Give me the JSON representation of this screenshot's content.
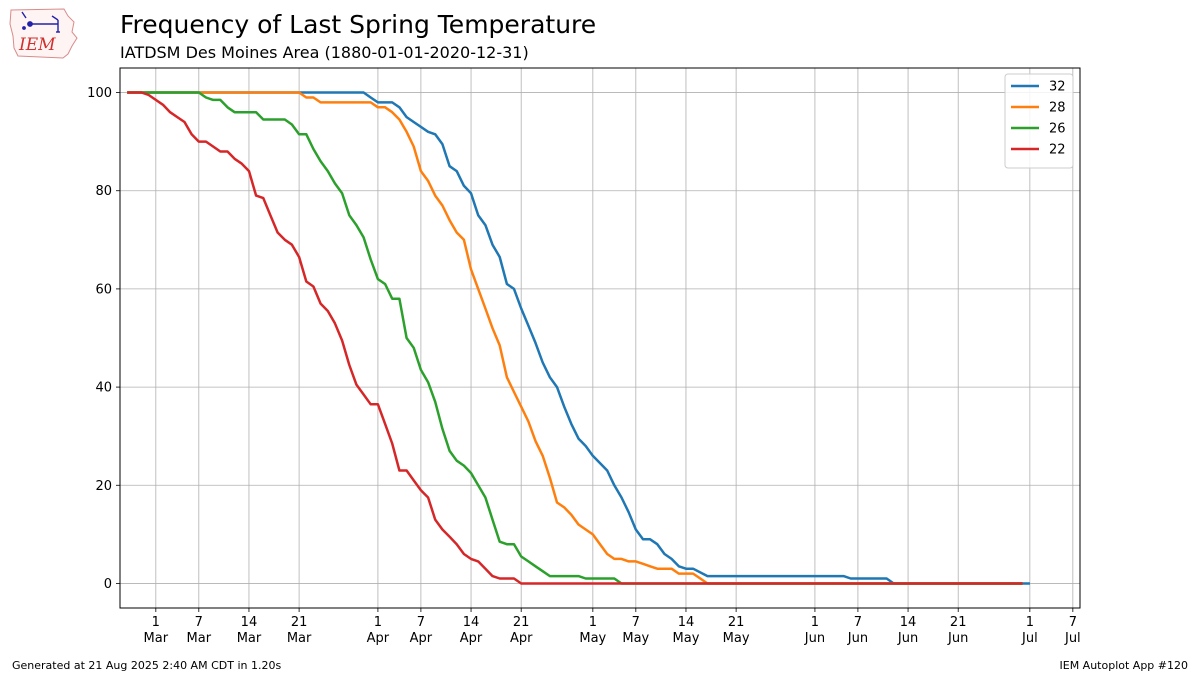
{
  "header": {
    "title": "Frequency of Last Spring Temperature",
    "subtitle": "IATDSM Des Moines Area (1880-01-01-2020-12-31)"
  },
  "logo": {
    "text": "IEM",
    "color": "#d0302e",
    "icon": "iowa-map-weather-station-icon"
  },
  "footer": {
    "left": "Generated at 21 Aug 2025 2:40 AM CDT in 1.20s",
    "right": "IEM Autoplot App #120"
  },
  "chart_data": {
    "type": "line",
    "title": "Frequency of Last Spring Temperature",
    "subtitle": "IATDSM Des Moines Area (1880-01-01-2020-12-31)",
    "xlabel": "",
    "ylabel": "",
    "xlim": [
      "2000-02-25",
      "2000-07-08"
    ],
    "ylim": [
      -5,
      105
    ],
    "grid": true,
    "legend_position": "top-right",
    "y_ticks": [
      0,
      20,
      40,
      60,
      80,
      100
    ],
    "x_ticks": [
      {
        "date": "2000-03-01",
        "day": "1",
        "month": "Mar"
      },
      {
        "date": "2000-03-07",
        "day": "7",
        "month": "Mar"
      },
      {
        "date": "2000-03-14",
        "day": "14",
        "month": "Mar"
      },
      {
        "date": "2000-03-21",
        "day": "21",
        "month": "Mar"
      },
      {
        "date": "2000-04-01",
        "day": "1",
        "month": "Apr"
      },
      {
        "date": "2000-04-07",
        "day": "7",
        "month": "Apr"
      },
      {
        "date": "2000-04-14",
        "day": "14",
        "month": "Apr"
      },
      {
        "date": "2000-04-21",
        "day": "21",
        "month": "Apr"
      },
      {
        "date": "2000-05-01",
        "day": "1",
        "month": "May"
      },
      {
        "date": "2000-05-07",
        "day": "7",
        "month": "May"
      },
      {
        "date": "2000-05-14",
        "day": "14",
        "month": "May"
      },
      {
        "date": "2000-05-21",
        "day": "21",
        "month": "May"
      },
      {
        "date": "2000-06-01",
        "day": "1",
        "month": "Jun"
      },
      {
        "date": "2000-06-07",
        "day": "7",
        "month": "Jun"
      },
      {
        "date": "2000-06-14",
        "day": "14",
        "month": "Jun"
      },
      {
        "date": "2000-06-21",
        "day": "21",
        "month": "Jun"
      },
      {
        "date": "2000-07-01",
        "day": "1",
        "month": "Jul"
      },
      {
        "date": "2000-07-07",
        "day": "7",
        "month": "Jul"
      }
    ],
    "series": [
      {
        "name": "32",
        "color": "#1f77b4",
        "points": [
          [
            "2000-02-26",
            100
          ],
          [
            "2000-03-30",
            100
          ],
          [
            "2000-03-31",
            99
          ],
          [
            "2000-04-01",
            98
          ],
          [
            "2000-04-03",
            98
          ],
          [
            "2000-04-04",
            97
          ],
          [
            "2000-04-05",
            95
          ],
          [
            "2000-04-06",
            94
          ],
          [
            "2000-04-07",
            93
          ],
          [
            "2000-04-08",
            92
          ],
          [
            "2000-04-09",
            91.5
          ],
          [
            "2000-04-10",
            89.5
          ],
          [
            "2000-04-11",
            85
          ],
          [
            "2000-04-12",
            84
          ],
          [
            "2000-04-13",
            81
          ],
          [
            "2000-04-14",
            79.5
          ],
          [
            "2000-04-15",
            75
          ],
          [
            "2000-04-16",
            73
          ],
          [
            "2000-04-17",
            69
          ],
          [
            "2000-04-18",
            66.5
          ],
          [
            "2000-04-19",
            61
          ],
          [
            "2000-04-20",
            60
          ],
          [
            "2000-04-21",
            56
          ],
          [
            "2000-04-22",
            52.5
          ],
          [
            "2000-04-23",
            49
          ],
          [
            "2000-04-24",
            45
          ],
          [
            "2000-04-25",
            42
          ],
          [
            "2000-04-26",
            40
          ],
          [
            "2000-04-27",
            36
          ],
          [
            "2000-04-28",
            32.5
          ],
          [
            "2000-04-29",
            29.5
          ],
          [
            "2000-04-30",
            28
          ],
          [
            "2000-05-01",
            26
          ],
          [
            "2000-05-03",
            23
          ],
          [
            "2000-05-04",
            20
          ],
          [
            "2000-05-05",
            17.5
          ],
          [
            "2000-05-06",
            14.5
          ],
          [
            "2000-05-07",
            11
          ],
          [
            "2000-05-08",
            9
          ],
          [
            "2000-05-09",
            9
          ],
          [
            "2000-05-10",
            8
          ],
          [
            "2000-05-11",
            6
          ],
          [
            "2000-05-12",
            5
          ],
          [
            "2000-05-13",
            3.5
          ],
          [
            "2000-05-14",
            3
          ],
          [
            "2000-05-15",
            3
          ],
          [
            "2000-05-17",
            1.5
          ],
          [
            "2000-06-05",
            1.5
          ],
          [
            "2000-06-06",
            1
          ],
          [
            "2000-06-11",
            1
          ],
          [
            "2000-06-12",
            0
          ],
          [
            "2000-07-01",
            0
          ]
        ]
      },
      {
        "name": "28",
        "color": "#ff7f0e",
        "points": [
          [
            "2000-02-26",
            100
          ],
          [
            "2000-03-21",
            100
          ],
          [
            "2000-03-22",
            99
          ],
          [
            "2000-03-23",
            99
          ],
          [
            "2000-03-24",
            98
          ],
          [
            "2000-03-31",
            98
          ],
          [
            "2000-04-01",
            97
          ],
          [
            "2000-04-02",
            97
          ],
          [
            "2000-04-03",
            96
          ],
          [
            "2000-04-04",
            94.5
          ],
          [
            "2000-04-05",
            92
          ],
          [
            "2000-04-06",
            89
          ],
          [
            "2000-04-07",
            84
          ],
          [
            "2000-04-08",
            82
          ],
          [
            "2000-04-09",
            79
          ],
          [
            "2000-04-10",
            77
          ],
          [
            "2000-04-11",
            74
          ],
          [
            "2000-04-12",
            71.5
          ],
          [
            "2000-04-13",
            70
          ],
          [
            "2000-04-14",
            64
          ],
          [
            "2000-04-15",
            60
          ],
          [
            "2000-04-16",
            56
          ],
          [
            "2000-04-17",
            52
          ],
          [
            "2000-04-18",
            48.5
          ],
          [
            "2000-04-19",
            42
          ],
          [
            "2000-04-20",
            39
          ],
          [
            "2000-04-21",
            36
          ],
          [
            "2000-04-22",
            33
          ],
          [
            "2000-04-23",
            29
          ],
          [
            "2000-04-24",
            26
          ],
          [
            "2000-04-25",
            21.5
          ],
          [
            "2000-04-26",
            16.5
          ],
          [
            "2000-04-27",
            15.5
          ],
          [
            "2000-04-28",
            14
          ],
          [
            "2000-04-29",
            12
          ],
          [
            "2000-04-30",
            11
          ],
          [
            "2000-05-01",
            10
          ],
          [
            "2000-05-02",
            8
          ],
          [
            "2000-05-03",
            6
          ],
          [
            "2000-05-04",
            5
          ],
          [
            "2000-05-05",
            5
          ],
          [
            "2000-05-06",
            4.5
          ],
          [
            "2000-05-07",
            4.5
          ],
          [
            "2000-05-08",
            4
          ],
          [
            "2000-05-09",
            3.5
          ],
          [
            "2000-05-10",
            3
          ],
          [
            "2000-05-12",
            3
          ],
          [
            "2000-05-13",
            2
          ],
          [
            "2000-05-15",
            2
          ],
          [
            "2000-05-16",
            1
          ],
          [
            "2000-05-17",
            0
          ],
          [
            "2000-06-30",
            0
          ]
        ]
      },
      {
        "name": "26",
        "color": "#2ca02c",
        "points": [
          [
            "2000-02-26",
            100
          ],
          [
            "2000-03-07",
            100
          ],
          [
            "2000-03-08",
            99
          ],
          [
            "2000-03-09",
            98.5
          ],
          [
            "2000-03-10",
            98.5
          ],
          [
            "2000-03-11",
            97
          ],
          [
            "2000-03-12",
            96
          ],
          [
            "2000-03-15",
            96
          ],
          [
            "2000-03-16",
            94.5
          ],
          [
            "2000-03-19",
            94.5
          ],
          [
            "2000-03-20",
            93.5
          ],
          [
            "2000-03-21",
            91.5
          ],
          [
            "2000-03-22",
            91.5
          ],
          [
            "2000-03-23",
            88.5
          ],
          [
            "2000-03-24",
            86
          ],
          [
            "2000-03-25",
            84
          ],
          [
            "2000-03-26",
            81.5
          ],
          [
            "2000-03-27",
            79.5
          ],
          [
            "2000-03-28",
            75
          ],
          [
            "2000-03-29",
            73
          ],
          [
            "2000-03-30",
            70.5
          ],
          [
            "2000-03-31",
            66
          ],
          [
            "2000-04-01",
            62
          ],
          [
            "2000-04-02",
            61
          ],
          [
            "2000-04-03",
            58
          ],
          [
            "2000-04-04",
            58
          ],
          [
            "2000-04-05",
            50
          ],
          [
            "2000-04-06",
            48
          ],
          [
            "2000-04-07",
            43.5
          ],
          [
            "2000-04-08",
            41
          ],
          [
            "2000-04-09",
            37
          ],
          [
            "2000-04-10",
            31.5
          ],
          [
            "2000-04-11",
            27
          ],
          [
            "2000-04-12",
            25
          ],
          [
            "2000-04-13",
            24
          ],
          [
            "2000-04-14",
            22.5
          ],
          [
            "2000-04-15",
            20
          ],
          [
            "2000-04-16",
            17.5
          ],
          [
            "2000-04-17",
            13
          ],
          [
            "2000-04-18",
            8.5
          ],
          [
            "2000-04-19",
            8
          ],
          [
            "2000-04-20",
            8
          ],
          [
            "2000-04-21",
            5.5
          ],
          [
            "2000-04-22",
            4.5
          ],
          [
            "2000-04-23",
            3.5
          ],
          [
            "2000-04-24",
            2.5
          ],
          [
            "2000-04-25",
            1.5
          ],
          [
            "2000-04-29",
            1.5
          ],
          [
            "2000-04-30",
            1
          ],
          [
            "2000-05-04",
            1
          ],
          [
            "2000-05-05",
            0
          ],
          [
            "2000-06-30",
            0
          ]
        ]
      },
      {
        "name": "22",
        "color": "#d62728",
        "points": [
          [
            "2000-02-26",
            100
          ],
          [
            "2000-02-28",
            100
          ],
          [
            "2000-02-29",
            99.5
          ],
          [
            "2000-03-01",
            98.5
          ],
          [
            "2000-03-02",
            97.5
          ],
          [
            "2000-03-03",
            96
          ],
          [
            "2000-03-04",
            95
          ],
          [
            "2000-03-05",
            94
          ],
          [
            "2000-03-06",
            91.5
          ],
          [
            "2000-03-07",
            90
          ],
          [
            "2000-03-08",
            90
          ],
          [
            "2000-03-09",
            89
          ],
          [
            "2000-03-10",
            88
          ],
          [
            "2000-03-11",
            88
          ],
          [
            "2000-03-12",
            86.5
          ],
          [
            "2000-03-13",
            85.5
          ],
          [
            "2000-03-14",
            84
          ],
          [
            "2000-03-15",
            79
          ],
          [
            "2000-03-16",
            78.5
          ],
          [
            "2000-03-17",
            75
          ],
          [
            "2000-03-18",
            71.5
          ],
          [
            "2000-03-19",
            70
          ],
          [
            "2000-03-20",
            69
          ],
          [
            "2000-03-21",
            66.5
          ],
          [
            "2000-03-22",
            61.5
          ],
          [
            "2000-03-23",
            60.5
          ],
          [
            "2000-03-24",
            57
          ],
          [
            "2000-03-25",
            55.5
          ],
          [
            "2000-03-26",
            53
          ],
          [
            "2000-03-27",
            49.5
          ],
          [
            "2000-03-28",
            44.5
          ],
          [
            "2000-03-29",
            40.5
          ],
          [
            "2000-03-30",
            38.5
          ],
          [
            "2000-03-31",
            36.5
          ],
          [
            "2000-04-01",
            36.5
          ],
          [
            "2000-04-02",
            32.5
          ],
          [
            "2000-04-03",
            28.5
          ],
          [
            "2000-04-04",
            23
          ],
          [
            "2000-04-05",
            23
          ],
          [
            "2000-04-06",
            21
          ],
          [
            "2000-04-07",
            19
          ],
          [
            "2000-04-08",
            17.5
          ],
          [
            "2000-04-09",
            13
          ],
          [
            "2000-04-10",
            11
          ],
          [
            "2000-04-11",
            9.5
          ],
          [
            "2000-04-12",
            8
          ],
          [
            "2000-04-13",
            6
          ],
          [
            "2000-04-14",
            5
          ],
          [
            "2000-04-15",
            4.5
          ],
          [
            "2000-04-16",
            3
          ],
          [
            "2000-04-17",
            1.5
          ],
          [
            "2000-04-18",
            1
          ],
          [
            "2000-04-20",
            1
          ],
          [
            "2000-04-21",
            0
          ],
          [
            "2000-06-30",
            0
          ]
        ]
      }
    ]
  }
}
